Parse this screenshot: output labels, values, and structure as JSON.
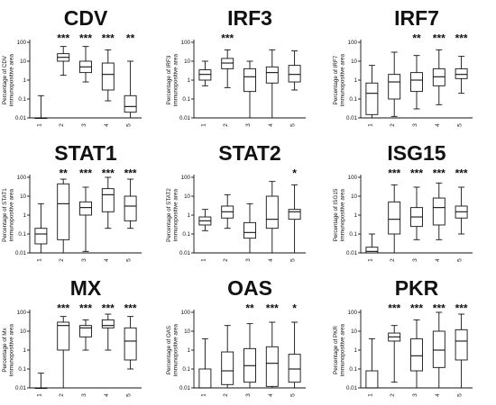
{
  "chart_data": [
    {
      "type": "box",
      "title": "CDV",
      "ylabel_lines": [
        "Percentage of CDV",
        "immunopositive area"
      ],
      "scale": "log",
      "ylim": [
        0.01,
        100
      ],
      "yticks": [
        "0.01",
        "0.1",
        "1",
        "10",
        "100"
      ],
      "categories": [
        "1",
        "2",
        "3",
        "4",
        "5"
      ],
      "boxes": [
        [
          0.01,
          0.01,
          0.01,
          0.01,
          0.15
        ],
        [
          1.8,
          10,
          16,
          25,
          60
        ],
        [
          0.8,
          2.5,
          5,
          10,
          60
        ],
        [
          0.08,
          0.3,
          2,
          8,
          40
        ],
        [
          0.01,
          0.02,
          0.04,
          0.15,
          10
        ]
      ],
      "significance": [
        "",
        "***",
        "***",
        "***",
        "**"
      ]
    },
    {
      "type": "box",
      "title": "IRF3",
      "ylabel_lines": [
        "Percentage of IRF3",
        "immunopositive area"
      ],
      "scale": "log",
      "ylim": [
        0.01,
        100
      ],
      "yticks": [
        "0.01",
        "0.1",
        "1",
        "10",
        "100"
      ],
      "categories": [
        "1",
        "2",
        "3",
        "4",
        "5"
      ],
      "boxes": [
        [
          0.5,
          1,
          2,
          3.5,
          10
        ],
        [
          0.4,
          4,
          8,
          14,
          40
        ],
        [
          0.01,
          0.25,
          1.5,
          4,
          10
        ],
        [
          0.01,
          0.7,
          2.5,
          5,
          40
        ],
        [
          0.3,
          0.8,
          2,
          6,
          35
        ]
      ],
      "significance": [
        "",
        "***",
        "",
        "",
        ""
      ]
    },
    {
      "type": "box",
      "title": "IRF7",
      "ylabel_lines": [
        "Percentage of IRF7",
        "immunopositive area"
      ],
      "scale": "log",
      "ylim": [
        0.01,
        100
      ],
      "yticks": [
        "0.01",
        "0.1",
        "1",
        "10",
        "100"
      ],
      "categories": [
        "1",
        "2",
        "3",
        "4",
        "5"
      ],
      "boxes": [
        [
          0.01,
          0.015,
          0.2,
          0.7,
          6
        ],
        [
          0.012,
          0.1,
          0.8,
          2,
          30
        ],
        [
          0.03,
          0.25,
          1,
          2.5,
          20
        ],
        [
          0.05,
          0.5,
          1.5,
          4,
          40
        ],
        [
          0.2,
          1.2,
          2,
          4,
          18
        ]
      ],
      "significance": [
        "",
        "",
        "**",
        "***",
        "***"
      ]
    },
    {
      "type": "box",
      "title": "STAT1",
      "ylabel_lines": [
        "Percentage of STAT1",
        "immunopositive area"
      ],
      "scale": "log",
      "ylim": [
        0.01,
        100
      ],
      "yticks": [
        "0.01",
        "0.1",
        "1",
        "10",
        "100"
      ],
      "categories": [
        "1",
        "2",
        "3",
        "4",
        "5"
      ],
      "boxes": [
        [
          0.01,
          0.03,
          0.1,
          0.2,
          4
        ],
        [
          0.01,
          0.05,
          4,
          45,
          80
        ],
        [
          0.012,
          1,
          2.5,
          5,
          30
        ],
        [
          0.2,
          1.5,
          12,
          25,
          100
        ],
        [
          0.2,
          0.5,
          3,
          10,
          80
        ]
      ],
      "significance": [
        "",
        "**",
        "***",
        "***",
        "***"
      ]
    },
    {
      "type": "box",
      "title": "STAT2",
      "ylabel_lines": [
        "Percentage of STAT2",
        "immunopositive area"
      ],
      "scale": "log",
      "ylim": [
        0.01,
        100
      ],
      "yticks": [
        "0.01",
        "0.1",
        "1",
        "10",
        "100"
      ],
      "categories": [
        "1",
        "2",
        "3",
        "4",
        "5"
      ],
      "boxes": [
        [
          0.15,
          0.3,
          0.5,
          0.8,
          2
        ],
        [
          0.2,
          0.7,
          1.5,
          3,
          12
        ],
        [
          0.01,
          0.06,
          0.12,
          0.4,
          4
        ],
        [
          0.01,
          0.2,
          0.6,
          10,
          60
        ],
        [
          0.01,
          0.6,
          1.5,
          2,
          40
        ]
      ],
      "significance": [
        "",
        "",
        "",
        "",
        "*"
      ]
    },
    {
      "type": "box",
      "title": "ISG15",
      "ylabel_lines": [
        "Percentage of ISG15",
        "immunopositive area"
      ],
      "scale": "log",
      "ylim": [
        0.01,
        100
      ],
      "yticks": [
        "0.01",
        "0.1",
        "1",
        "10",
        "100"
      ],
      "categories": [
        "1",
        "2",
        "3",
        "4",
        "5"
      ],
      "boxes": [
        [
          0.01,
          0.01,
          0.012,
          0.02,
          0.1
        ],
        [
          0.01,
          0.1,
          0.6,
          5,
          40
        ],
        [
          0.05,
          0.25,
          0.8,
          2.5,
          30
        ],
        [
          0.05,
          0.3,
          2.5,
          8,
          50
        ],
        [
          0.1,
          0.7,
          1.5,
          3,
          30
        ]
      ],
      "significance": [
        "",
        "***",
        "***",
        "***",
        "***"
      ]
    },
    {
      "type": "box",
      "title": "MX",
      "ylabel_lines": [
        "Percentage of Mx",
        "immunopositive area"
      ],
      "scale": "log",
      "ylim": [
        0.01,
        100
      ],
      "yticks": [
        "0.01",
        "0.1",
        "1",
        "10",
        "100"
      ],
      "categories": [
        "1",
        "2",
        "3",
        "4",
        "5"
      ],
      "boxes": [
        [
          0.01,
          0.01,
          0.01,
          0.01,
          0.06
        ],
        [
          0.01,
          1,
          20,
          30,
          60
        ],
        [
          1,
          5,
          15,
          20,
          40
        ],
        [
          1,
          15,
          20,
          40,
          80
        ],
        [
          0.1,
          0.3,
          3,
          15,
          60
        ]
      ],
      "significance": [
        "",
        "***",
        "***",
        "***",
        "***"
      ]
    },
    {
      "type": "box",
      "title": "OAS",
      "ylabel_lines": [
        "Percentage of OAS",
        "immunopositive area"
      ],
      "scale": "log",
      "ylim": [
        0.01,
        100
      ],
      "yticks": [
        "0.01",
        "0.1",
        "1",
        "10",
        "100"
      ],
      "categories": [
        "1",
        "2",
        "3",
        "4",
        "5"
      ],
      "boxes": [
        [
          0.01,
          0.01,
          0.01,
          0.1,
          4
        ],
        [
          0.01,
          0.015,
          0.08,
          0.8,
          20
        ],
        [
          0.01,
          0.02,
          0.15,
          1.2,
          25
        ],
        [
          0.01,
          0.012,
          0.2,
          1.5,
          30
        ],
        [
          0.01,
          0.02,
          0.1,
          0.6,
          30
        ]
      ],
      "significance": [
        "",
        "",
        "**",
        "***",
        "*"
      ]
    },
    {
      "type": "box",
      "title": "PKR",
      "ylabel_lines": [
        "Percentage of PKR",
        "immunopositive area"
      ],
      "scale": "log",
      "ylim": [
        0.01,
        100
      ],
      "yticks": [
        "0.01",
        "0.1",
        "1",
        "10",
        "100"
      ],
      "categories": [
        "1",
        "2",
        "3",
        "4",
        "5"
      ],
      "boxes": [
        [
          0.01,
          0.01,
          0.01,
          0.08,
          4
        ],
        [
          0.02,
          3,
          5,
          8,
          20
        ],
        [
          0.01,
          0.08,
          0.5,
          4,
          40
        ],
        [
          0.01,
          0.12,
          1,
          10,
          100
        ],
        [
          0.01,
          0.3,
          3,
          12,
          80
        ]
      ],
      "significance": [
        "",
        "***",
        "***",
        "***",
        "***"
      ]
    }
  ]
}
